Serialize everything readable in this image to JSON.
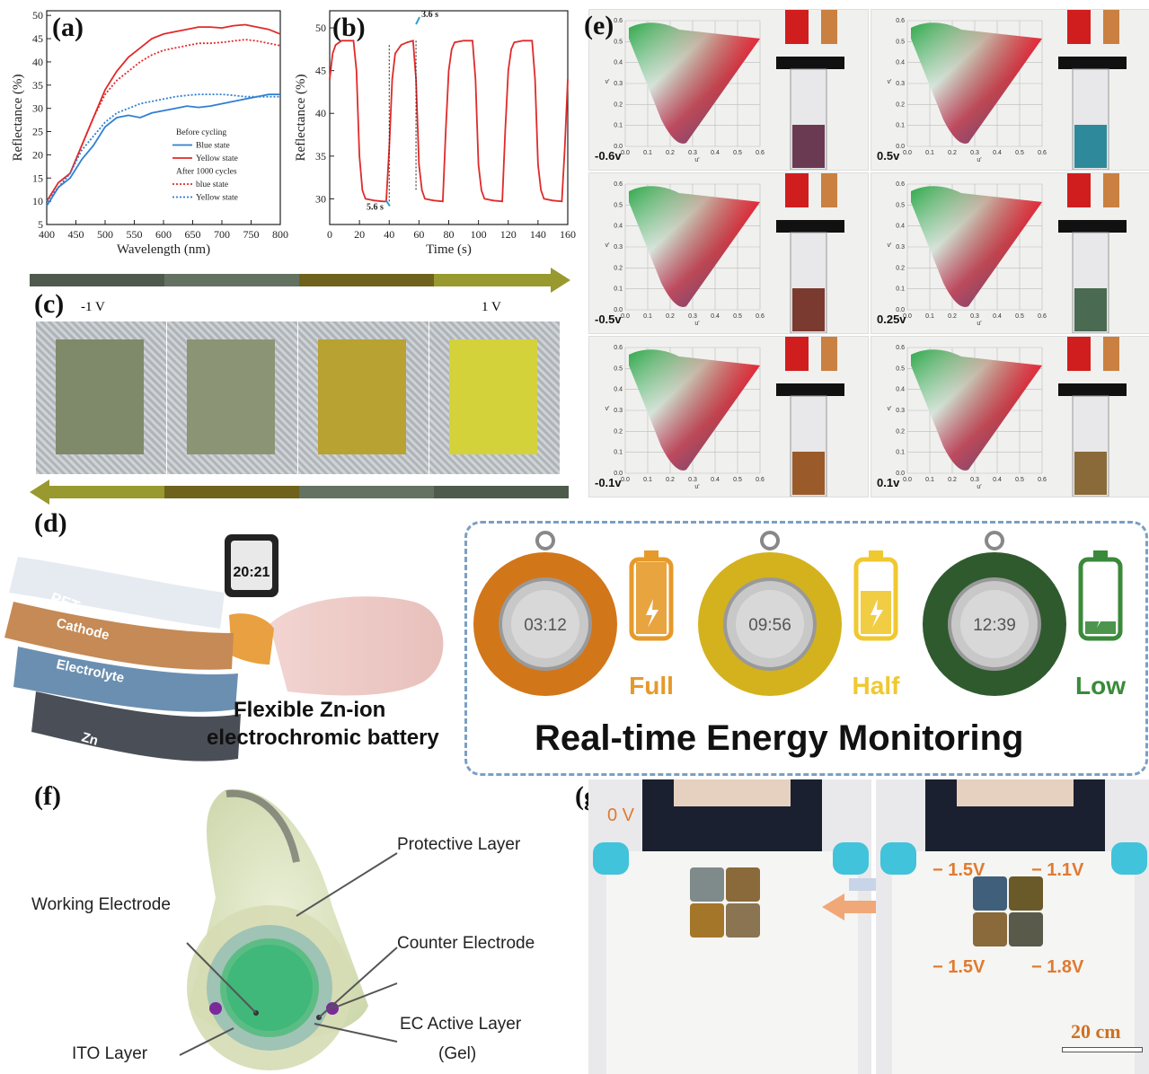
{
  "labels": {
    "a": "(a)",
    "b": "(b)",
    "c": "(c)",
    "d": "(d)",
    "e": "(e)",
    "f": "(f)",
    "g": "(g)"
  },
  "chart_data": [
    {
      "type": "line",
      "panel": "a",
      "xlabel": "Wavelength (nm)",
      "ylabel": "Reflectance (%)",
      "xlim": [
        400,
        800
      ],
      "ylim": [
        5,
        51
      ],
      "xticks": [
        400,
        450,
        500,
        550,
        600,
        650,
        700,
        750,
        800
      ],
      "yticks": [
        5,
        10,
        15,
        20,
        25,
        30,
        35,
        40,
        45,
        50
      ],
      "legend": {
        "placement": "bottom-right",
        "headers": [
          "Before cycling",
          "After 1000 cycles"
        ]
      },
      "series": [
        {
          "name": "Blue state",
          "group": "Before cycling",
          "color": "#2f7fd1",
          "style": "solid",
          "x": [
            400,
            420,
            440,
            460,
            480,
            500,
            520,
            540,
            560,
            580,
            600,
            620,
            640,
            660,
            680,
            700,
            720,
            740,
            760,
            780,
            800
          ],
          "y": [
            9,
            13,
            15,
            19,
            22,
            26,
            28,
            28.5,
            28,
            29,
            29.5,
            30,
            30.5,
            30.2,
            30.5,
            31,
            31.5,
            32,
            32.5,
            33,
            33
          ]
        },
        {
          "name": "Yellow state",
          "group": "Before cycling",
          "color": "#e02a2a",
          "style": "solid",
          "x": [
            400,
            420,
            440,
            460,
            480,
            500,
            520,
            540,
            560,
            580,
            600,
            620,
            640,
            660,
            680,
            700,
            720,
            740,
            760,
            780,
            800
          ],
          "y": [
            10,
            14,
            16,
            22,
            28,
            34,
            38,
            41,
            43,
            45,
            46,
            46.5,
            47,
            47.5,
            47.5,
            47.3,
            47.8,
            48,
            47.5,
            47,
            46
          ]
        },
        {
          "name": "blue state",
          "group": "After 1000 cycles",
          "color": "#e02a2a",
          "style": "dotted",
          "x": [
            400,
            420,
            440,
            460,
            480,
            500,
            520,
            540,
            560,
            580,
            600,
            620,
            640,
            660,
            680,
            700,
            720,
            740,
            760,
            780,
            800
          ],
          "y": [
            10,
            13,
            16,
            22,
            28,
            33,
            36,
            38,
            40,
            41.5,
            42.5,
            43,
            43.5,
            44,
            44,
            44.2,
            44.5,
            44.8,
            44.5,
            44,
            43.5
          ]
        },
        {
          "name": "Yellow state",
          "group": "After 1000 cycles",
          "color": "#2f7fd1",
          "style": "dotted",
          "x": [
            400,
            420,
            440,
            460,
            480,
            500,
            520,
            540,
            560,
            580,
            600,
            620,
            640,
            660,
            680,
            700,
            720,
            740,
            760,
            780,
            800
          ],
          "y": [
            10,
            13,
            16,
            21,
            24,
            27,
            29,
            30,
            31,
            31.5,
            32,
            32.5,
            32.8,
            33,
            33,
            33,
            32.8,
            32.5,
            32.5,
            32.5,
            32.5
          ]
        }
      ]
    },
    {
      "type": "line",
      "panel": "b",
      "xlabel": "Time (s)",
      "ylabel": "Reflectance (%)",
      "xlim": [
        0,
        160
      ],
      "ylim": [
        27,
        52
      ],
      "xticks": [
        0,
        20,
        40,
        60,
        80,
        100,
        120,
        140,
        160
      ],
      "yticks": [
        30,
        35,
        40,
        45,
        50
      ],
      "annotations": [
        {
          "text": "3.6 s",
          "x": 58,
          "y": 50
        },
        {
          "text": "5.6 s",
          "x": 38,
          "y": 30
        }
      ],
      "series": [
        {
          "name": "",
          "color": "#e02a2a",
          "x": [
            0,
            2,
            4,
            8,
            16,
            18,
            20,
            22,
            24,
            30,
            36,
            38,
            40,
            42,
            44,
            48,
            52,
            56,
            58,
            60,
            62,
            64,
            70,
            76,
            78,
            80,
            82,
            84,
            90,
            96,
            98,
            100,
            102,
            104,
            110,
            116,
            118,
            120,
            122,
            124,
            130,
            136,
            138,
            140,
            142,
            144,
            150,
            156,
            158,
            160
          ],
          "y": [
            44,
            47,
            48,
            48.5,
            48.5,
            45,
            35,
            31,
            30,
            29.8,
            29.7,
            29.7,
            36,
            44,
            47,
            48,
            48.3,
            48.5,
            44,
            34,
            31,
            30,
            29.8,
            29.7,
            38,
            45,
            47.5,
            48.3,
            48.5,
            48.5,
            44,
            34,
            31,
            30,
            29.8,
            29.7,
            38,
            45,
            47.5,
            48.3,
            48.5,
            48.5,
            44,
            34,
            31,
            30,
            29.8,
            29.7,
            36,
            44
          ]
        }
      ]
    }
  ],
  "panel_c": {
    "left_label": "-1 V",
    "right_label": "1 V",
    "swatches": [
      "#7e8a6a",
      "#8b9576",
      "#b8a232",
      "#d4d23a"
    ]
  },
  "panel_e": {
    "axis_u": "u'",
    "axis_v": "v'",
    "u_ticks": [
      "0.0",
      "0.1",
      "0.2",
      "0.3",
      "0.4",
      "0.5",
      "0.6"
    ],
    "v_ticks": [
      "0.0",
      "0.1",
      "0.2",
      "0.3",
      "0.4",
      "0.5",
      "0.6"
    ],
    "tiles": [
      {
        "voltage": "-0.6v",
        "liquid": "#6a3a52"
      },
      {
        "voltage": "0.5v",
        "liquid": "#2e8a9a"
      },
      {
        "voltage": "-0.5v",
        "liquid": "#7a3a30"
      },
      {
        "voltage": "0.25v",
        "liquid": "#4a6a52"
      },
      {
        "voltage": "-0.1v",
        "liquid": "#9a5a2a"
      },
      {
        "voltage": "0.1v",
        "liquid": "#8a6a38"
      }
    ]
  },
  "panel_d": {
    "layers": [
      "PET",
      "Cathode",
      "Electrolyte",
      "Zn"
    ],
    "watch_time": "20:21",
    "caption_line1": "Flexible Zn-ion",
    "caption_line2": "electrochromic battery",
    "monitor_title": "Real-time Energy Monitoring",
    "states": [
      {
        "time": "03:12",
        "label": "Full",
        "color": "#d2761a",
        "text_color": "#e59a2a"
      },
      {
        "time": "09:56",
        "label": "Half",
        "color": "#d4b21e",
        "text_color": "#f0c830"
      },
      {
        "time": "12:39",
        "label": "Low",
        "color": "#2f5a2e",
        "text_color": "#3a8a3a"
      }
    ]
  },
  "panel_f": {
    "labels": {
      "protective": "Protective Layer",
      "working": "Working Electrode",
      "counter": "Counter Electrode",
      "ito": "ITO Layer",
      "ec": "EC Active Layer",
      "gel": "(Gel)"
    }
  },
  "panel_g": {
    "left_voltage": "0 V",
    "voltages": [
      "− 1.5V",
      "− 1.1V",
      "− 1.5V",
      "− 1.8V"
    ],
    "scale": "20 cm"
  }
}
